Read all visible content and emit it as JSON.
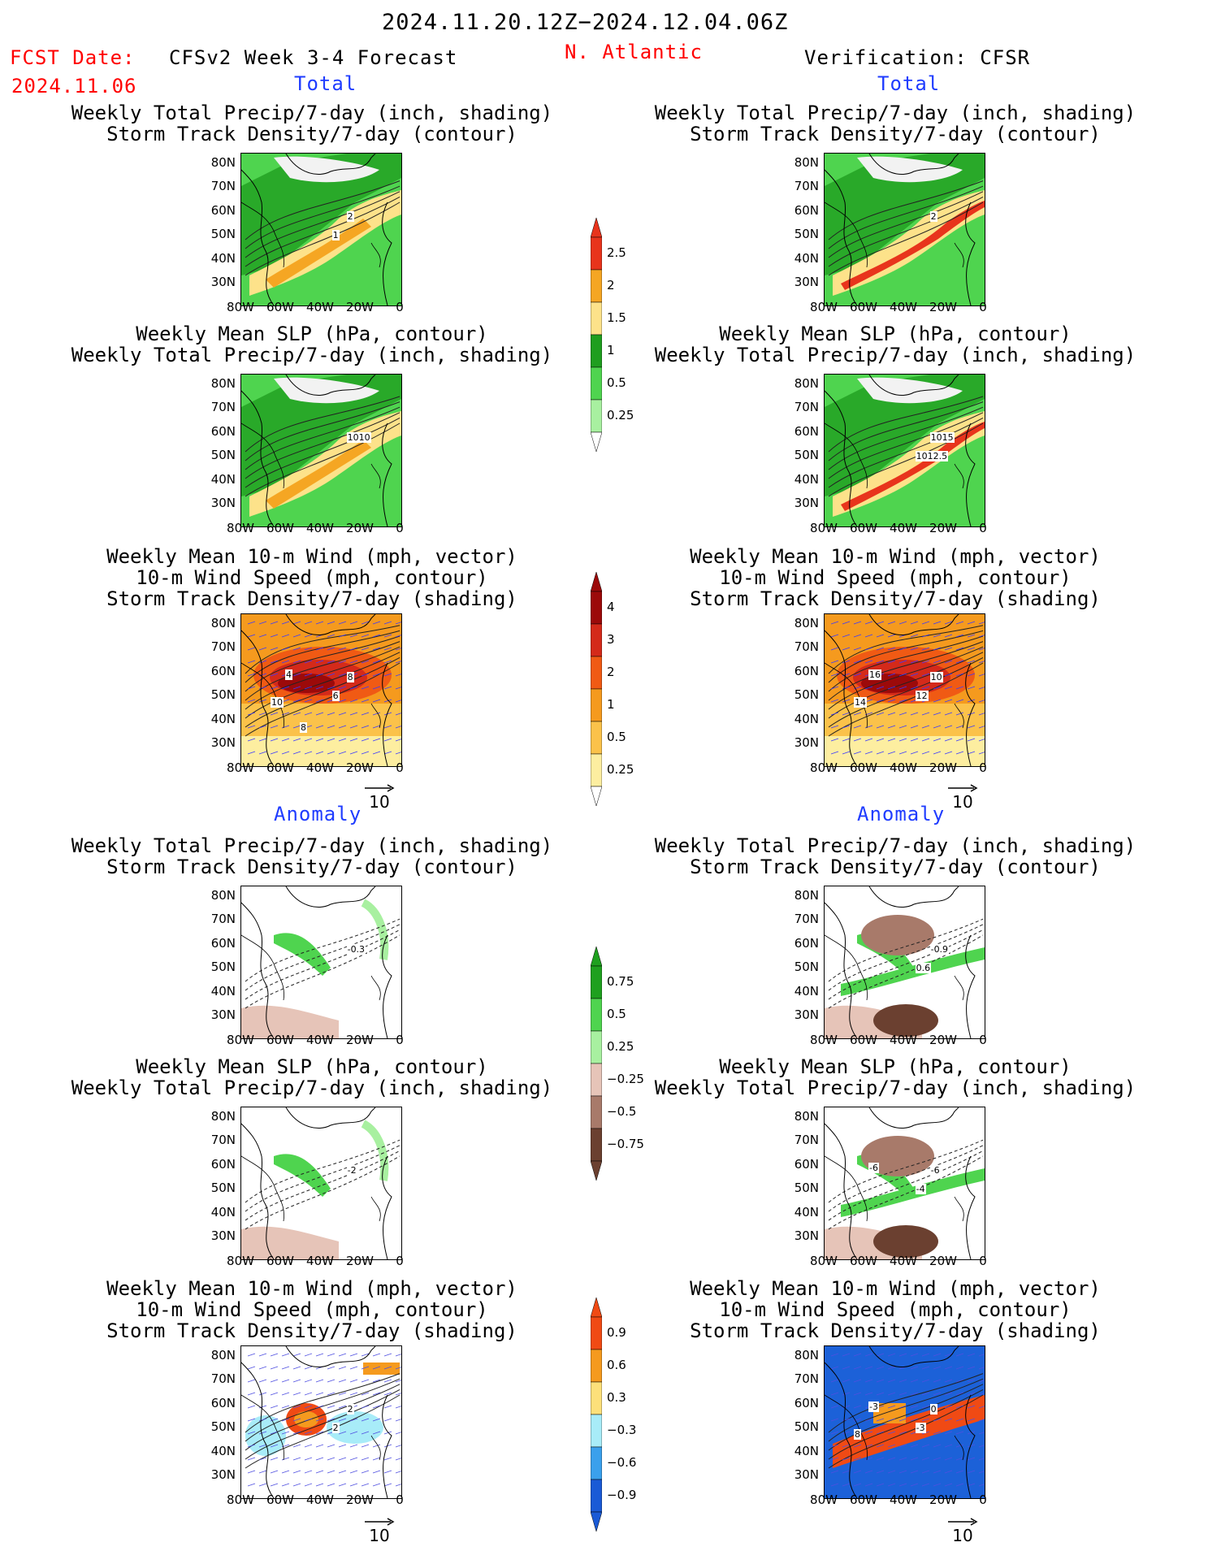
{
  "header": {
    "period": "2024.11.20.12Z−2024.12.04.06Z",
    "fcst_label": "FCST Date:",
    "fcst_date": "2024.11.06",
    "model": "CFSv2 Week 3-4 Forecast",
    "region": "N. Atlantic",
    "verification": "Verification: CFSR"
  },
  "sections": {
    "total": "Total",
    "anomaly": "Anomaly"
  },
  "titles": {
    "precip_track_1": "Weekly Total Precip/7-day (inch, shading)",
    "precip_track_2": "Storm Track Density/7-day (contour)",
    "slp_1": "Weekly Mean SLP (hPa, contour)",
    "slp_2": "Weekly Total Precip/7-day (inch, shading)",
    "wind_1": "Weekly Mean 10-m Wind (mph, vector)",
    "wind_2": "10-m Wind Speed (mph, contour)",
    "wind_3": "Storm Track Density/7-day (shading)"
  },
  "axes": {
    "lat_ticks": [
      "80N",
      "70N",
      "60N",
      "50N",
      "40N",
      "30N"
    ],
    "lon_ticks": [
      "80W",
      "60W",
      "40W",
      "20W",
      "0"
    ]
  },
  "vector_ref": "10",
  "colorbars": {
    "precip_total": {
      "labels": [
        "2.5",
        "2",
        "1.5",
        "1",
        "0.5",
        "0.25"
      ],
      "colors": [
        "#e8341c",
        "#f5a623",
        "#fde28a",
        "#1f9e1f",
        "#4fd44f",
        "#a8f0a0"
      ]
    },
    "track_total": {
      "labels": [
        "4",
        "3",
        "2",
        "1",
        "0.5",
        "0.25"
      ],
      "colors": [
        "#9c0a0a",
        "#d42a1a",
        "#f05a14",
        "#f59a1e",
        "#fbc24a",
        "#fdeea0"
      ]
    },
    "precip_anom": {
      "labels": [
        "0.75",
        "0.5",
        "0.25",
        "−0.25",
        "−0.5",
        "−0.75"
      ],
      "colors": [
        "#1fa01f",
        "#4fd44f",
        "#a8f0a0",
        "#e6c4b8",
        "#a87a6a",
        "#6b4030"
      ]
    },
    "track_anom": {
      "labels": [
        "0.9",
        "0.6",
        "0.3",
        "−0.3",
        "−0.6",
        "−0.9"
      ],
      "colors": [
        "#f04a14",
        "#f59a1e",
        "#fde07a",
        "#a8ecf8",
        "#3aa0ec",
        "#1a5ad6"
      ]
    }
  },
  "map_labels": {
    "l_total_precip": [
      "2",
      "1"
    ],
    "l_total_slp": [
      "1010"
    ],
    "l_total_wind": [
      "8",
      "6",
      "4",
      "10",
      "8"
    ],
    "r_total_precip": [
      "2"
    ],
    "r_total_slp": [
      "1015",
      "1012.5"
    ],
    "r_total_wind": [
      "10",
      "12",
      "16",
      "14"
    ],
    "l_anom_precip": [
      "-0.3"
    ],
    "l_anom_slp": [
      "-2"
    ],
    "l_anom_wind": [
      "2",
      "2"
    ],
    "r_anom_precip": [
      "-0.9",
      "0.6"
    ],
    "r_anom_slp": [
      "-6",
      "-4",
      "-6"
    ],
    "r_anom_wind": [
      "0",
      "-3",
      "-3",
      "8"
    ]
  }
}
